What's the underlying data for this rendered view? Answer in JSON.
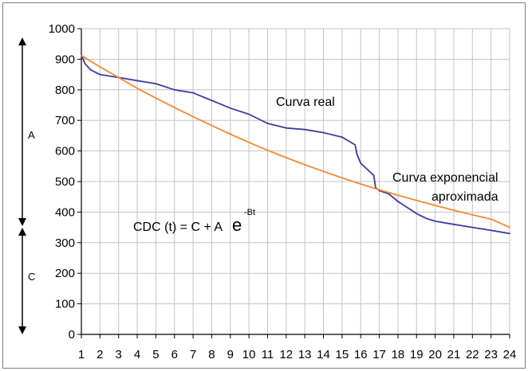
{
  "chart_data": {
    "type": "line",
    "title": "",
    "xlabel": "",
    "ylabel": "",
    "x": [
      1,
      2,
      3,
      4,
      5,
      6,
      7,
      8,
      9,
      10,
      11,
      12,
      13,
      14,
      15,
      16,
      17,
      18,
      19,
      20,
      21,
      22,
      23,
      24
    ],
    "x_tick_labels": [
      "1",
      "2",
      "3",
      "4",
      "5",
      "6",
      "7",
      "8",
      "9",
      "10",
      "11",
      "12",
      "13",
      "14",
      "15",
      "16",
      "17",
      "18",
      "19",
      "20",
      "21",
      "22",
      "23",
      "24"
    ],
    "y_ticks": [
      0,
      100,
      200,
      300,
      400,
      500,
      600,
      700,
      800,
      900,
      1000
    ],
    "xlim": [
      1,
      24
    ],
    "ylim": [
      0,
      1000
    ],
    "grid": true,
    "series": [
      {
        "name": "Curva real",
        "color": "#3b3ba6",
        "points": [
          [
            1,
            915
          ],
          [
            1.2,
            885
          ],
          [
            1.5,
            865
          ],
          [
            2,
            850
          ],
          [
            3,
            840
          ],
          [
            4,
            830
          ],
          [
            5,
            820
          ],
          [
            6,
            800
          ],
          [
            7,
            790
          ],
          [
            8,
            765
          ],
          [
            9,
            740
          ],
          [
            10,
            720
          ],
          [
            11,
            690
          ],
          [
            12,
            675
          ],
          [
            13,
            670
          ],
          [
            14,
            660
          ],
          [
            15,
            645
          ],
          [
            15.7,
            620
          ],
          [
            15.8,
            590
          ],
          [
            16,
            560
          ],
          [
            16.7,
            520
          ],
          [
            16.8,
            480
          ],
          [
            17,
            470
          ],
          [
            17.5,
            460
          ],
          [
            18,
            435
          ],
          [
            19,
            395
          ],
          [
            19.5,
            380
          ],
          [
            20,
            370
          ],
          [
            21,
            360
          ],
          [
            22,
            350
          ],
          [
            23,
            340
          ],
          [
            24,
            330
          ]
        ]
      },
      {
        "name": "Curva exponencial aproximada",
        "color": "#f28a30",
        "points": [
          [
            1,
            912
          ],
          [
            2,
            875
          ],
          [
            3,
            840
          ],
          [
            4,
            805
          ],
          [
            5,
            773
          ],
          [
            6,
            742
          ],
          [
            7,
            712
          ],
          [
            8,
            683
          ],
          [
            9,
            655
          ],
          [
            10,
            628
          ],
          [
            11,
            602
          ],
          [
            12,
            578
          ],
          [
            13,
            555
          ],
          [
            14,
            533
          ],
          [
            15,
            512
          ],
          [
            16,
            492
          ],
          [
            17,
            473
          ],
          [
            18,
            455
          ],
          [
            19,
            438
          ],
          [
            20,
            422
          ],
          [
            21,
            406
          ],
          [
            22,
            391
          ],
          [
            23,
            377
          ],
          [
            24,
            350
          ]
        ]
      }
    ],
    "annotations": {
      "real_label": "Curva real",
      "exp_label_line1": "Curva exponencial",
      "exp_label_line2": "aproximada",
      "formula_main": "CDC (t) = C + A",
      "formula_e": "e",
      "formula_exp": "-Bt"
    },
    "side_labels": {
      "a": "A",
      "c": "C"
    }
  }
}
